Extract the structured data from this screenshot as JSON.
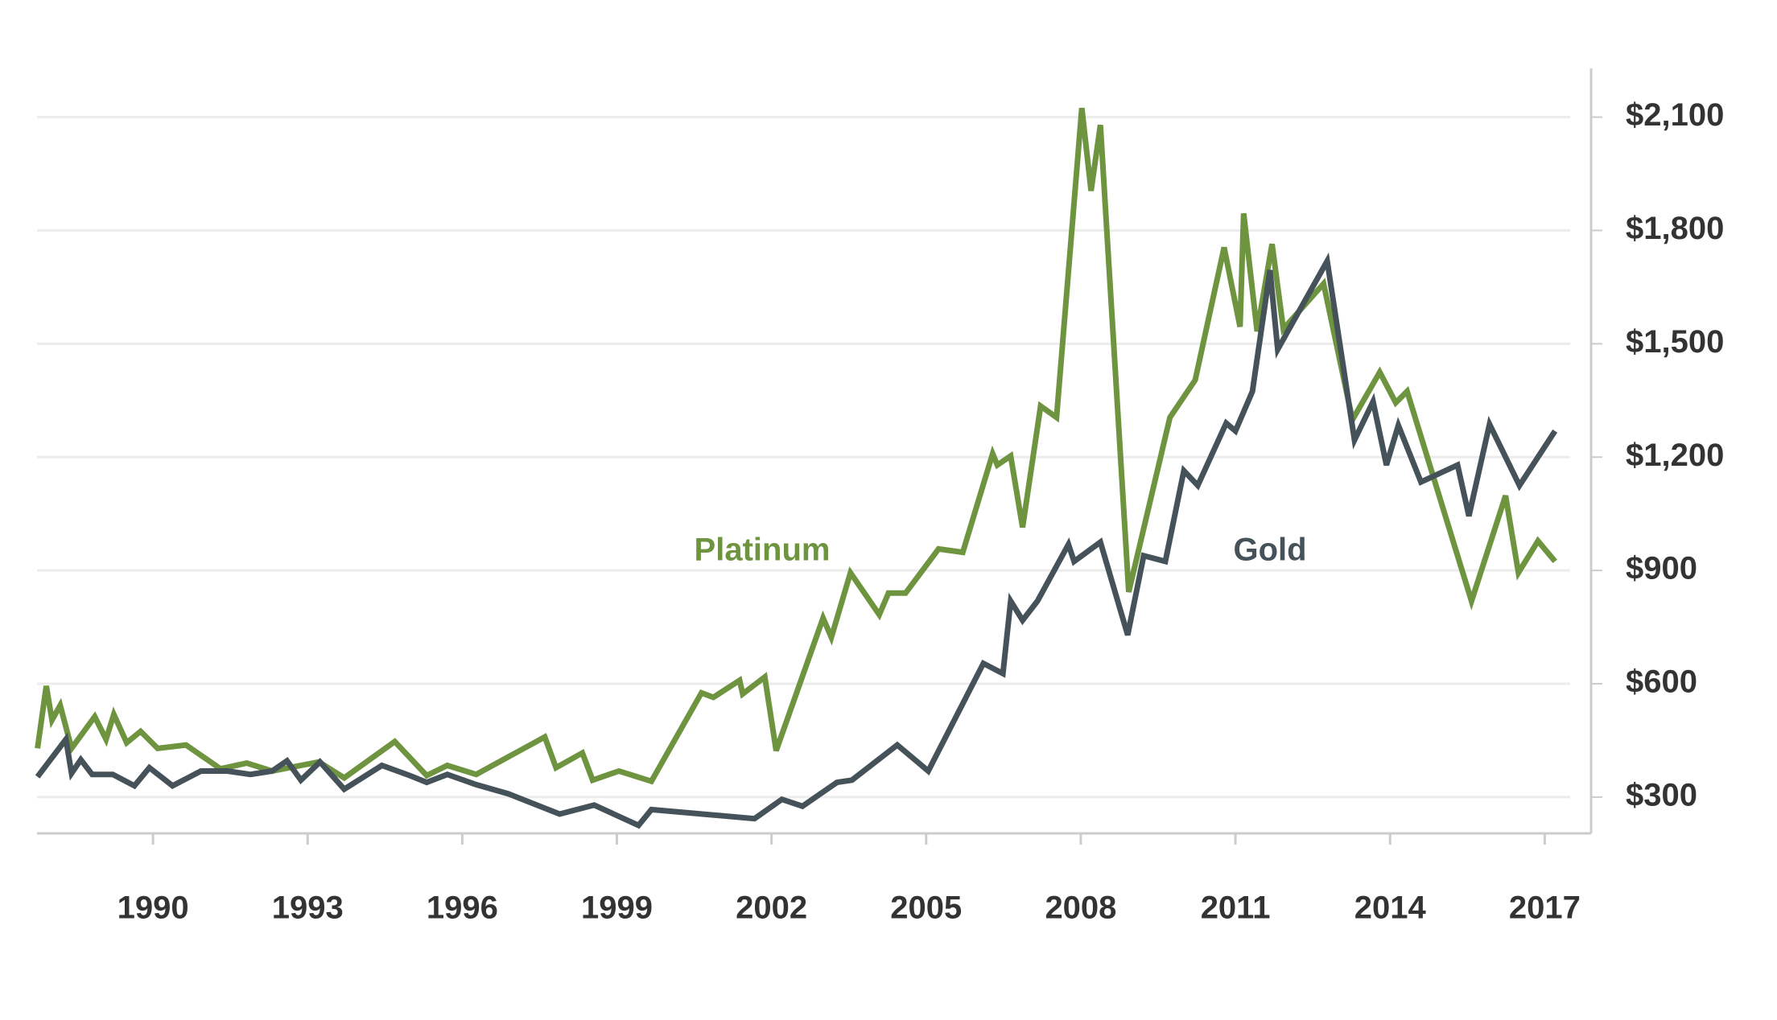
{
  "chart_data": {
    "type": "line",
    "xlim": [
      1987.75,
      2017.9
    ],
    "xticks": [
      1990,
      1993,
      1996,
      1999,
      2002,
      2005,
      2008,
      2011,
      2014,
      2017
    ],
    "ylim": [
      204,
      2229
    ],
    "yticks": [
      {
        "value": 300,
        "label": "$300"
      },
      {
        "value": 600,
        "label": "$600"
      },
      {
        "value": 900,
        "label": "$900"
      },
      {
        "value": 1200,
        "label": "$1,200"
      },
      {
        "value": 1500,
        "label": "$1,500"
      },
      {
        "value": 1800,
        "label": "$1,800"
      },
      {
        "value": 2100,
        "label": "$2,100"
      }
    ],
    "grid": true,
    "y_axis_side": "right",
    "series": [
      {
        "name": "Platinum",
        "color": "#6f9440",
        "x": [
          1987.76,
          1987.93,
          1988.04,
          1988.2,
          1988.42,
          1988.87,
          1989.09,
          1989.24,
          1989.49,
          1989.76,
          1990.09,
          1990.64,
          1991.31,
          1991.82,
          1992.31,
          1993.22,
          1993.71,
          1994.69,
          1995.31,
          1995.71,
          1996.27,
          1997.6,
          1997.82,
          1998.33,
          1998.53,
          1999.04,
          1999.67,
          2000.64,
          2000.87,
          2001.38,
          2001.44,
          2001.87,
          2002.09,
          2003.0,
          2003.16,
          2003.53,
          2004.09,
          2004.27,
          2004.6,
          2005.24,
          2005.71,
          2006.29,
          2006.38,
          2006.64,
          2006.87,
          2007.22,
          2007.53,
          2008.02,
          2008.2,
          2008.38,
          2008.93,
          2009.73,
          2010.22,
          2010.78,
          2011.09,
          2011.16,
          2011.42,
          2011.71,
          2011.93,
          2012.71,
          2013.27,
          2013.8,
          2014.11,
          2014.33,
          2015.58,
          2016.24,
          2016.49,
          2016.87,
          2017.2
        ],
        "values": [
          429,
          594,
          504,
          543,
          429,
          513,
          453,
          519,
          444,
          474,
          429,
          438,
          375,
          390,
          369,
          393,
          351,
          447,
          357,
          384,
          360,
          459,
          378,
          417,
          345,
          369,
          342,
          576,
          564,
          609,
          573,
          618,
          423,
          774,
          723,
          894,
          783,
          840,
          840,
          957,
          948,
          1209,
          1179,
          1203,
          1014,
          1335,
          1305,
          2124,
          1905,
          2079,
          843,
          1305,
          1404,
          1755,
          1545,
          1845,
          1533,
          1764,
          1539,
          1659,
          1299,
          1425,
          1344,
          1374,
          819,
          1098,
          894,
          978,
          924
        ]
      },
      {
        "name": "Gold",
        "color": "#46525a",
        "x": [
          1987.76,
          1988.31,
          1988.42,
          1988.6,
          1988.82,
          1989.22,
          1989.64,
          1989.93,
          1990.38,
          1990.93,
          1991.44,
          1991.89,
          1992.31,
          1992.6,
          1992.87,
          1993.24,
          1993.71,
          1994.44,
          1994.98,
          1995.31,
          1995.71,
          1996.27,
          1996.89,
          1997.89,
          1998.56,
          1999.42,
          1999.67,
          2001.67,
          2002.2,
          2002.6,
          2003.27,
          2003.56,
          2004.44,
          2005.04,
          2006.11,
          2006.49,
          2006.64,
          2006.87,
          2007.16,
          2007.76,
          2007.87,
          2008.38,
          2008.91,
          2009.22,
          2009.64,
          2010.0,
          2010.27,
          2010.82,
          2011.0,
          2011.33,
          2011.67,
          2011.82,
          2012.04,
          2012.78,
          2013.31,
          2013.67,
          2013.93,
          2014.16,
          2014.6,
          2015.31,
          2015.53,
          2015.93,
          2016.51,
          2017.2
        ],
        "values": [
          354,
          453,
          363,
          399,
          360,
          360,
          330,
          378,
          330,
          369,
          369,
          360,
          369,
          396,
          345,
          393,
          321,
          384,
          357,
          339,
          360,
          333,
          309,
          255,
          279,
          225,
          267,
          243,
          294,
          276,
          339,
          345,
          438,
          369,
          654,
          627,
          819,
          768,
          819,
          969,
          924,
          975,
          729,
          939,
          924,
          1164,
          1125,
          1290,
          1269,
          1374,
          1695,
          1485,
          1539,
          1719,
          1245,
          1347,
          1179,
          1284,
          1134,
          1179,
          1044,
          1287,
          1125,
          1269
        ]
      }
    ]
  }
}
